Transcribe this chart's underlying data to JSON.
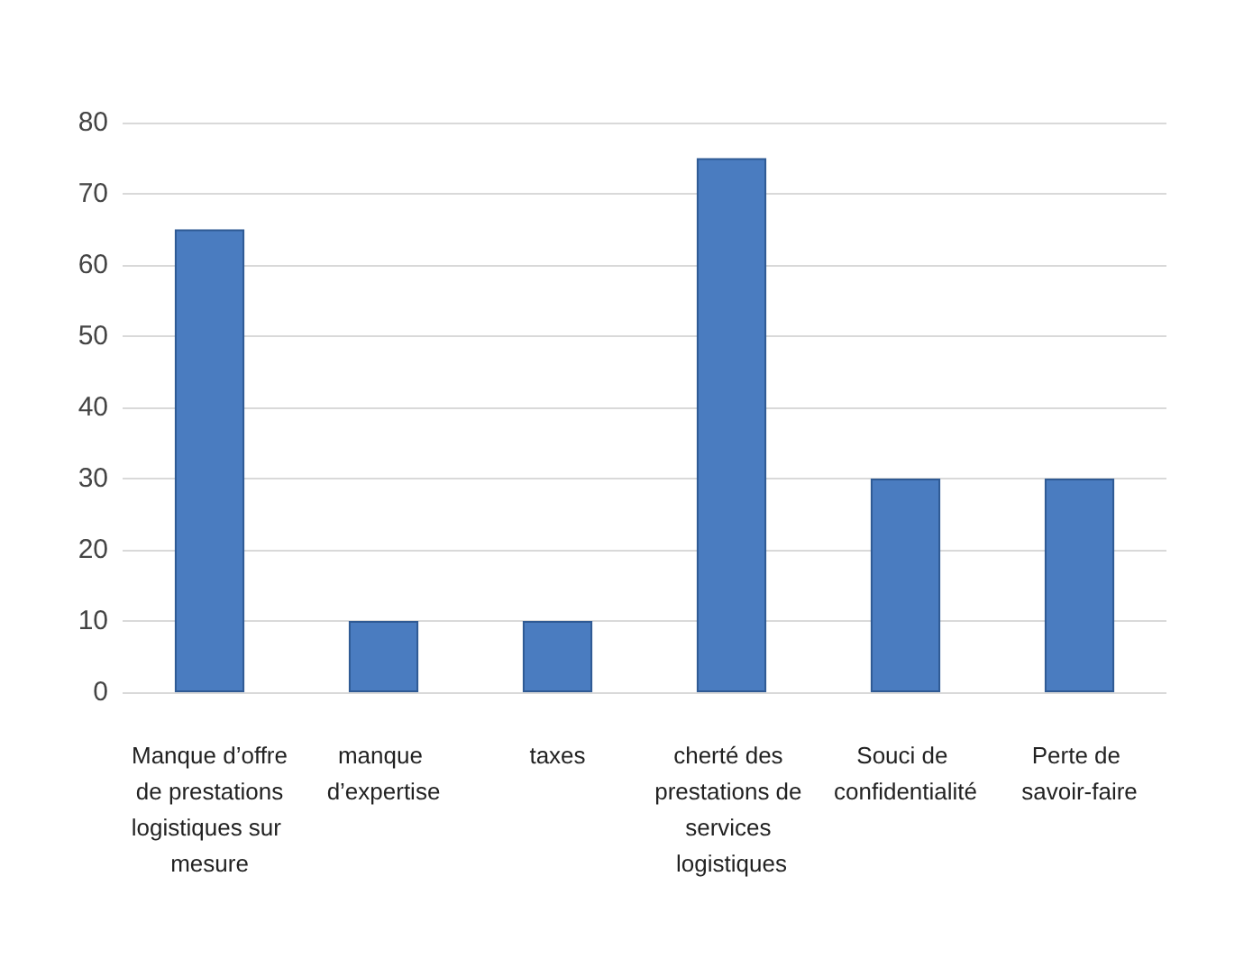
{
  "chart_data": {
    "type": "bar",
    "categories": [
      "Manque d’offre de prestations logistiques sur mesure",
      "manque d’expertise",
      "taxes",
      "cherté des prestations de services logistiques",
      "Souci de confidentialité",
      "Perte de savoir-faire"
    ],
    "values": [
      65,
      10,
      10,
      75,
      30,
      30
    ],
    "color": "#4a7cc0",
    "ylim": [
      0,
      80
    ],
    "yticks": [
      0,
      10,
      20,
      30,
      40,
      50,
      60,
      70,
      80
    ],
    "grid": "y"
  }
}
